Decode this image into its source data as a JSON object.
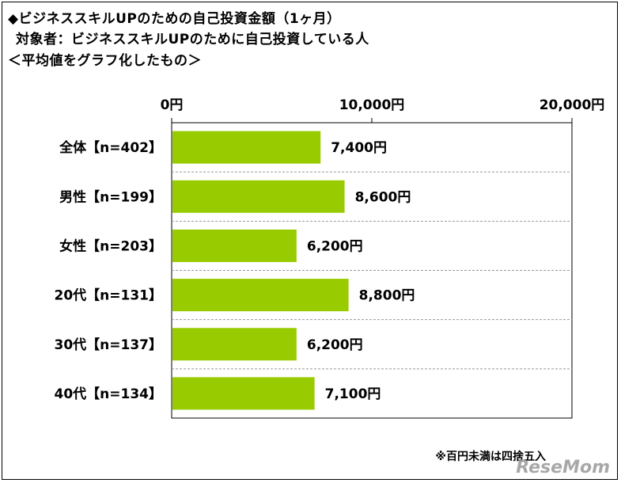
{
  "titles": {
    "line1": "◆ビジネススキルUPのための自己投資金額（1ヶ月）",
    "line2": "対象者：ビジネススキルUPのために自己投資している人",
    "line3": "＜平均値をグラフ化したもの＞"
  },
  "note": "※百円未満は四捨五入",
  "logo": "ReseMom",
  "chart_data": {
    "type": "bar",
    "orientation": "horizontal",
    "categories": [
      "全体【n=402】",
      "男性【n=199】",
      "女性【n=203】",
      "20代【n=131】",
      "30代【n=137】",
      "40代【n=134】"
    ],
    "values": [
      7400,
      8600,
      6200,
      8800,
      6200,
      7100
    ],
    "value_labels": [
      "7,400円",
      "8,600円",
      "6,200円",
      "8,800円",
      "6,200円",
      "7,100円"
    ],
    "xlim": [
      0,
      20000
    ],
    "xticks": [
      0,
      10000,
      20000
    ],
    "xtick_labels": [
      "0円",
      "10,000円",
      "20,000円"
    ],
    "bar_color": "#99cc00",
    "grid": "horizontal-dashed",
    "legend": "none"
  }
}
